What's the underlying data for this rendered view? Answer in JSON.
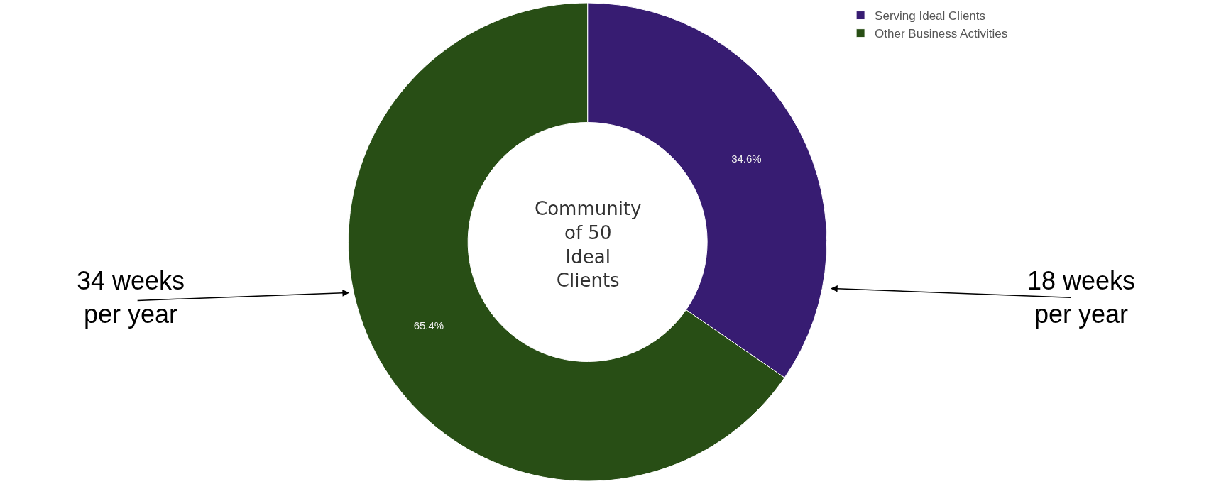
{
  "chart_data": {
    "type": "donut",
    "categories": [
      "Serving Ideal Clients",
      "Other Business Activities"
    ],
    "values": [
      34.6,
      65.4
    ],
    "colors": [
      "#371c72",
      "#284e15"
    ],
    "value_labels": [
      "34.6%",
      "65.4%"
    ],
    "legend": "top right",
    "annotations": [
      "Community of 50 Ideal Clients",
      "34 weeks per year",
      "18 weeks per year"
    ]
  }
}
